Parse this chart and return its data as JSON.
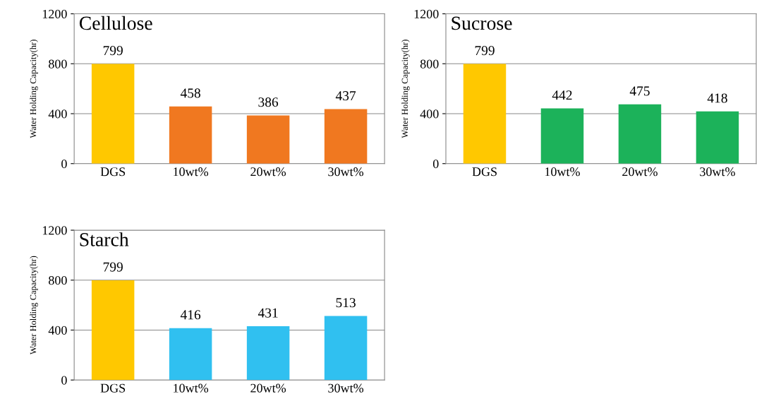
{
  "chart_data": [
    {
      "type": "bar",
      "title": "Cellulose",
      "ylabel": "Water Holding Capacity(hr)",
      "categories": [
        "DGS",
        "10wt%",
        "20wt%",
        "30wt%"
      ],
      "values": [
        799,
        458,
        386,
        437
      ],
      "colors": [
        "#ffc800",
        "#f07820",
        "#f07820",
        "#f07820"
      ],
      "ylim": [
        0,
        1200
      ],
      "yticks": [
        0,
        400,
        800,
        1200
      ],
      "grid": "y",
      "data_labels": true
    },
    {
      "type": "bar",
      "title": "Sucrose",
      "ylabel": "Water Holding Capacity(hr)",
      "categories": [
        "DGS",
        "10wt%",
        "20wt%",
        "30wt%"
      ],
      "values": [
        799,
        442,
        475,
        418
      ],
      "colors": [
        "#ffc800",
        "#1cb25a",
        "#1cb25a",
        "#1cb25a"
      ],
      "ylim": [
        0,
        1200
      ],
      "yticks": [
        0,
        400,
        800,
        1200
      ],
      "grid": "y",
      "data_labels": true
    },
    {
      "type": "bar",
      "title": "Starch",
      "ylabel": "Water Holding Capacity(hr)",
      "categories": [
        "DGS",
        "10wt%",
        "20wt%",
        "30wt%"
      ],
      "values": [
        799,
        416,
        431,
        513
      ],
      "colors": [
        "#ffc800",
        "#30c0f0",
        "#30c0f0",
        "#30c0f0"
      ],
      "ylim": [
        0,
        1200
      ],
      "yticks": [
        0,
        400,
        800,
        1200
      ],
      "grid": "y",
      "data_labels": true
    }
  ]
}
